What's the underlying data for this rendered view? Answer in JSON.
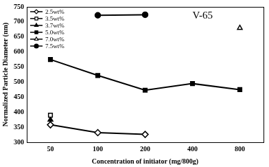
{
  "chart_data": {
    "type": "line",
    "annotation": "V-65",
    "x_label": "Concentration of initiator (mg/800g)",
    "y_label": "Normalized Particle Diameter (nm)",
    "categories": [
      "50",
      "100",
      "200",
      "400",
      "800"
    ],
    "ylim": [
      300,
      750
    ],
    "yticks": [
      300,
      350,
      400,
      450,
      500,
      550,
      600,
      650,
      700,
      750
    ],
    "grid": false,
    "legend": "upper left",
    "series": [
      {
        "name": "2.5wt%",
        "color": "#000000",
        "marker": "diamond-open",
        "values": [
          358,
          332,
          326,
          null,
          null
        ]
      },
      {
        "name": "3.5wt%",
        "color": "#000000",
        "marker": "square-open",
        "values": [
          390,
          null,
          null,
          null,
          null
        ]
      },
      {
        "name": "3.7wt%",
        "color": "#000000",
        "marker": "triangle",
        "values": [
          375,
          null,
          null,
          null,
          null
        ]
      },
      {
        "name": "5.0wt%",
        "color": "#000000",
        "marker": "square",
        "values": [
          575,
          522,
          473,
          495,
          475
        ]
      },
      {
        "name": "7.0wt%",
        "color": "#000000",
        "marker": "triangle-open",
        "values": [
          null,
          null,
          null,
          null,
          680
        ]
      },
      {
        "name": "7.5wt%",
        "color": "#000000",
        "marker": "circle",
        "values": [
          null,
          722,
          724,
          null,
          null
        ]
      }
    ]
  }
}
